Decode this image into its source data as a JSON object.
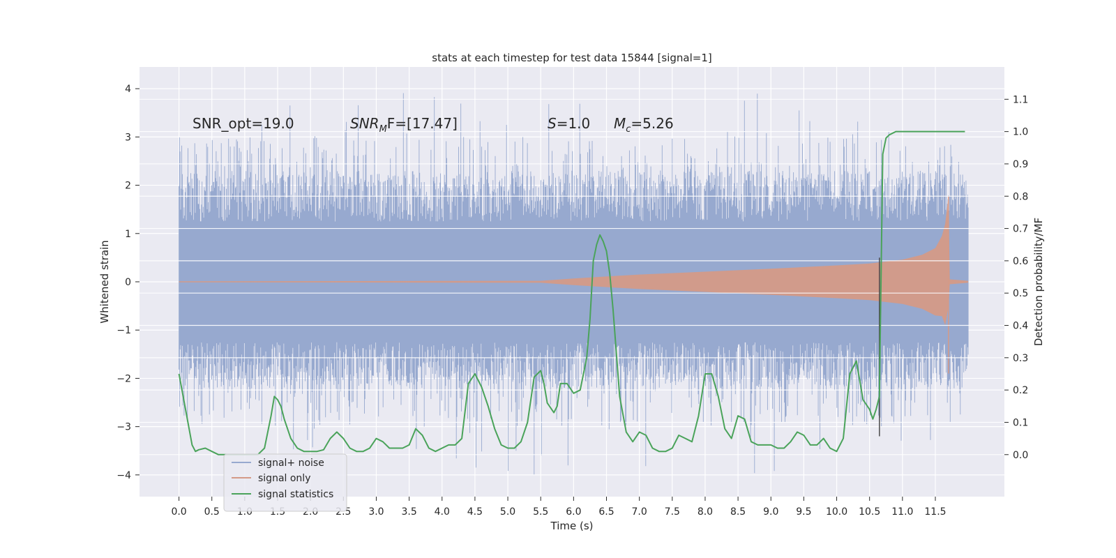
{
  "chart_data": {
    "type": "line",
    "title": "stats at each timestep for test data 15844 [signal=1]",
    "xlabel": "Time (s)",
    "ylabel": "Whitened strain",
    "y2label": "Detection probability/MF",
    "xlim": [
      -0.6,
      12.55
    ],
    "ylim": [
      -4.45,
      4.45
    ],
    "y2lim": [
      -0.13,
      1.2
    ],
    "x_ticks": [
      0.0,
      0.5,
      1.0,
      1.5,
      2.0,
      2.5,
      3.0,
      3.5,
      4.0,
      4.5,
      5.0,
      5.5,
      6.0,
      6.5,
      7.0,
      7.5,
      8.0,
      8.5,
      9.0,
      9.5,
      10.0,
      10.5,
      11.0,
      11.5
    ],
    "x_tick_labels": [
      "0.0",
      "0.5",
      "1.0",
      "1.5",
      "2.0",
      "2.5",
      "3.0",
      "3.5",
      "4.0",
      "4.5",
      "5.0",
      "5.5",
      "6.0",
      "6.5",
      "7.0",
      "7.5",
      "8.0",
      "8.5",
      "9.0",
      "9.5",
      "10.0",
      "10.5",
      "11.0",
      "11.5"
    ],
    "y_ticks": [
      4,
      3,
      2,
      1,
      0,
      -1,
      -2,
      -3,
      -4
    ],
    "y_tick_labels": [
      "4",
      "3",
      "2",
      "1",
      "0",
      "−1",
      "−2",
      "−3",
      "−4"
    ],
    "y2_ticks": [
      1.1,
      1.0,
      0.9,
      0.8,
      0.7,
      0.6,
      0.5,
      0.4,
      0.3,
      0.2,
      0.1,
      0.0
    ],
    "y2_tick_labels": [
      "1.1",
      "1.0",
      "0.9",
      "0.8",
      "0.7",
      "0.6",
      "0.5",
      "0.4",
      "0.3",
      "0.2",
      "0.1",
      "0.0"
    ],
    "grid": true,
    "legend_position": "lower-left",
    "colors": {
      "noise": "#97a9cf",
      "signal": "#d49a87",
      "stats": "#4aa35a",
      "marker": "#4a4a4a",
      "background": "#eaeaf2",
      "grid": "#ffffff"
    },
    "series": [
      {
        "name": "signal+ noise",
        "time_range": [
          0.0,
          12.0
        ],
        "envelope_upper": 1.25,
        "envelope_lower": -1.25,
        "typical_peak_range": [
          1.9,
          3.0
        ],
        "max": 4.05,
        "min": -4.05
      },
      {
        "name": "signal only",
        "time_range": [
          0.0,
          12.0
        ],
        "envelope": {
          "t": [
            0.0,
            5.5,
            6.0,
            7.0,
            8.0,
            9.0,
            10.0,
            10.5,
            11.0,
            11.3,
            11.5,
            11.6,
            11.65,
            11.7,
            11.72,
            12.0
          ],
          "amp": [
            0.01,
            0.02,
            0.07,
            0.15,
            0.21,
            0.27,
            0.34,
            0.38,
            0.46,
            0.56,
            0.7,
            0.95,
            1.2,
            1.78,
            0.05,
            0.02
          ]
        }
      },
      {
        "name": "signal statistics",
        "x": [
          0.0,
          0.1,
          0.2,
          0.25,
          0.3,
          0.4,
          0.5,
          0.6,
          0.7,
          0.8,
          0.9,
          1.0,
          1.1,
          1.2,
          1.3,
          1.4,
          1.45,
          1.5,
          1.55,
          1.6,
          1.7,
          1.8,
          1.9,
          2.0,
          2.1,
          2.2,
          2.3,
          2.4,
          2.5,
          2.6,
          2.7,
          2.8,
          2.9,
          3.0,
          3.1,
          3.2,
          3.3,
          3.4,
          3.5,
          3.6,
          3.7,
          3.8,
          3.9,
          4.0,
          4.1,
          4.2,
          4.3,
          4.4,
          4.5,
          4.6,
          4.7,
          4.8,
          4.9,
          5.0,
          5.1,
          5.2,
          5.3,
          5.4,
          5.5,
          5.55,
          5.6,
          5.7,
          5.75,
          5.8,
          5.9,
          6.0,
          6.1,
          6.2,
          6.25,
          6.3,
          6.35,
          6.4,
          6.45,
          6.5,
          6.55,
          6.6,
          6.7,
          6.8,
          6.9,
          7.0,
          7.1,
          7.2,
          7.3,
          7.4,
          7.5,
          7.6,
          7.7,
          7.8,
          7.9,
          8.0,
          8.1,
          8.2,
          8.3,
          8.4,
          8.5,
          8.6,
          8.7,
          8.8,
          8.9,
          9.0,
          9.1,
          9.2,
          9.3,
          9.4,
          9.5,
          9.6,
          9.7,
          9.8,
          9.9,
          10.0,
          10.1,
          10.2,
          10.3,
          10.4,
          10.5,
          10.55,
          10.6,
          10.65,
          10.7,
          10.75,
          10.8,
          10.9,
          11.0,
          11.5,
          11.95
        ],
        "y": [
          0.25,
          0.14,
          0.03,
          0.01,
          0.015,
          0.02,
          0.01,
          0.0,
          0.0,
          0.0,
          0.0,
          0.0,
          0.0,
          0.0,
          0.02,
          0.12,
          0.18,
          0.17,
          0.15,
          0.11,
          0.05,
          0.02,
          0.01,
          0.01,
          0.01,
          0.015,
          0.05,
          0.07,
          0.05,
          0.02,
          0.01,
          0.01,
          0.02,
          0.05,
          0.04,
          0.02,
          0.02,
          0.02,
          0.03,
          0.08,
          0.06,
          0.02,
          0.01,
          0.02,
          0.03,
          0.03,
          0.05,
          0.22,
          0.25,
          0.21,
          0.15,
          0.08,
          0.03,
          0.02,
          0.02,
          0.04,
          0.1,
          0.24,
          0.26,
          0.22,
          0.16,
          0.13,
          0.15,
          0.22,
          0.22,
          0.19,
          0.2,
          0.3,
          0.42,
          0.6,
          0.65,
          0.68,
          0.66,
          0.63,
          0.56,
          0.45,
          0.18,
          0.07,
          0.04,
          0.07,
          0.06,
          0.02,
          0.01,
          0.01,
          0.02,
          0.06,
          0.05,
          0.04,
          0.12,
          0.25,
          0.25,
          0.18,
          0.08,
          0.05,
          0.12,
          0.11,
          0.04,
          0.03,
          0.03,
          0.03,
          0.02,
          0.02,
          0.04,
          0.07,
          0.06,
          0.03,
          0.03,
          0.05,
          0.02,
          0.01,
          0.05,
          0.25,
          0.29,
          0.17,
          0.14,
          0.11,
          0.14,
          0.18,
          0.93,
          0.98,
          0.99,
          1.0,
          1.0,
          1.0,
          1.0
        ]
      }
    ],
    "marker_line": {
      "x": 10.65,
      "y_from": -3.2,
      "y_to": 0.5
    },
    "annotations": [
      {
        "text": "SNR_opt=19.0",
        "x": 0.2,
        "y": 3.2
      },
      {
        "main": "SNR",
        "sub": "M",
        "rest": "F=[17.47]",
        "x": 2.6,
        "y": 3.2
      },
      {
        "main": "S",
        "rest": "=1.0",
        "x": 5.6,
        "y": 3.2
      },
      {
        "main": "M",
        "sub": "c",
        "rest": "=5.26",
        "x": 6.6,
        "y": 3.2
      }
    ],
    "legend": [
      {
        "label": "signal+ noise",
        "color": "#97a9cf"
      },
      {
        "label": "signal only",
        "color": "#d49a87"
      },
      {
        "label": "signal statistics",
        "color": "#4aa35a"
      }
    ]
  }
}
